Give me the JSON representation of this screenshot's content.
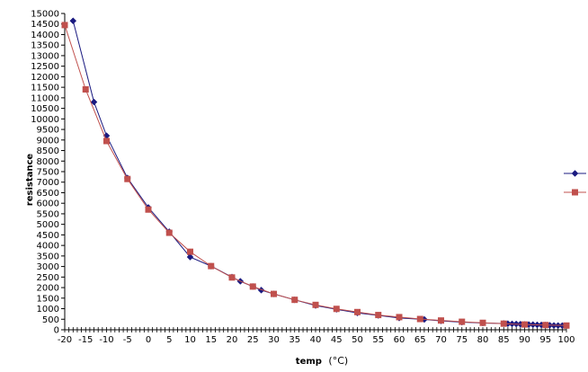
{
  "chart_data": {
    "type": "scatter",
    "title": "",
    "xlabel": "temp (°C)",
    "xlabel_main": "temp",
    "xlabel_unit": "(°C)",
    "ylabel": "resistance",
    "xlim": [
      -20,
      100
    ],
    "ylim": [
      0,
      15000
    ],
    "x_ticks": [
      -20,
      -15,
      -10,
      -5,
      0,
      5,
      10,
      15,
      20,
      25,
      30,
      35,
      40,
      45,
      50,
      55,
      60,
      65,
      70,
      75,
      80,
      85,
      90,
      95,
      100
    ],
    "y_ticks": [
      0,
      500,
      1000,
      1500,
      2000,
      2500,
      3000,
      3500,
      4000,
      4500,
      5000,
      5500,
      6000,
      6500,
      7000,
      7500,
      8000,
      8500,
      9000,
      9500,
      10000,
      10500,
      11000,
      11500,
      12000,
      12500,
      13000,
      13500,
      14000,
      14500,
      15000
    ],
    "grid": false,
    "legend_position": "right",
    "series": [
      {
        "color": "#1a1a80",
        "marker": "diamond",
        "x": [
          -18,
          -13,
          -10,
          -5,
          0,
          5,
          10,
          15,
          20,
          22,
          25,
          27,
          30,
          35,
          40,
          45,
          50,
          55,
          60,
          66,
          70,
          75,
          80,
          85,
          86,
          87,
          88,
          89,
          90,
          91,
          92,
          93,
          94,
          95,
          96,
          97,
          98,
          99
        ],
        "y": [
          14650,
          10800,
          9200,
          7200,
          5800,
          4650,
          3450,
          3020,
          2500,
          2300,
          2050,
          1880,
          1700,
          1420,
          1150,
          970,
          800,
          680,
          560,
          490,
          420,
          360,
          320,
          300,
          290,
          280,
          275,
          265,
          255,
          250,
          245,
          235,
          230,
          225,
          215,
          205,
          200,
          195
        ]
      },
      {
        "color": "#c0504d",
        "marker": "square",
        "x": [
          -20,
          -15,
          -10,
          -5,
          0,
          5,
          10,
          15,
          20,
          25,
          30,
          35,
          40,
          45,
          50,
          55,
          60,
          65,
          70,
          75,
          80,
          85,
          90,
          95,
          100
        ],
        "y": [
          14450,
          11400,
          8950,
          7150,
          5700,
          4600,
          3700,
          3020,
          2480,
          2050,
          1700,
          1420,
          1180,
          990,
          840,
          700,
          600,
          510,
          440,
          380,
          330,
          290,
          250,
          225,
          200
        ]
      }
    ]
  }
}
